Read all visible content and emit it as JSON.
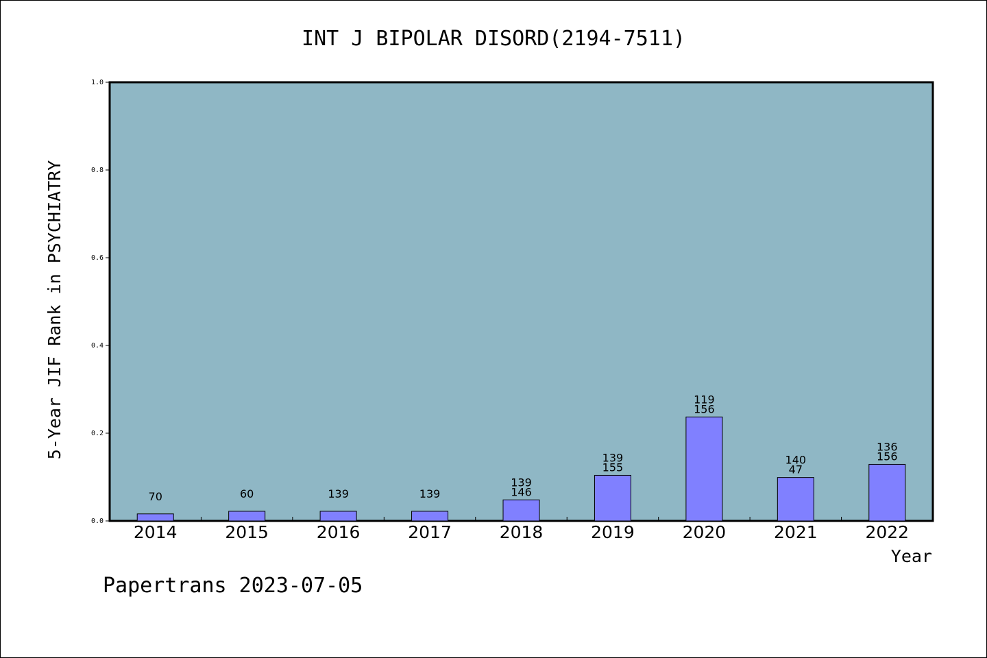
{
  "chart_data": {
    "type": "bar",
    "title": "INT J BIPOLAR DISORD(2194-7511)",
    "xlabel": "Year",
    "ylabel": "5-Year JIF Rank in PSYCHIATRY",
    "ylim": [
      0,
      1.0
    ],
    "yticks": [
      "0.0",
      "0.2",
      "0.4",
      "0.6",
      "0.8",
      "1.0"
    ],
    "grid": false,
    "legend": "none",
    "categories": [
      "2014",
      "2015",
      "2016",
      "2017",
      "2018",
      "2019",
      "2020",
      "2021",
      "2022"
    ],
    "values": [
      0.016,
      0.022,
      0.022,
      0.022,
      0.048,
      0.104,
      0.237,
      0.099,
      0.129
    ],
    "labels": [
      [
        "70"
      ],
      [
        "60"
      ],
      [
        "139"
      ],
      [
        "139"
      ],
      [
        "139",
        "146"
      ],
      [
        "139",
        "155"
      ],
      [
        "119",
        "156"
      ],
      [
        "140",
        "47"
      ],
      [
        "136",
        "156"
      ]
    ],
    "colors": {
      "plot_bg": "#8fb7c5",
      "bar": "#8080ff"
    }
  },
  "footer": "Papertrans 2023-07-05"
}
